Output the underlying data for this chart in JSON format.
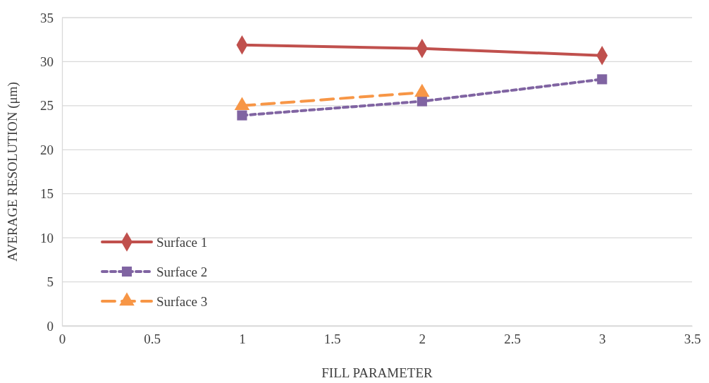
{
  "chart_data": {
    "type": "line",
    "xlabel": "FILL PARAMETER",
    "ylabel": "AVERAGE RESOLUTION (μm)",
    "xlim": [
      0,
      3.5
    ],
    "xticks": [
      0,
      0.5,
      1,
      1.5,
      2,
      2.5,
      3,
      3.5
    ],
    "ylim": [
      0,
      35
    ],
    "yticks": [
      0,
      5,
      10,
      15,
      20,
      25,
      30,
      35
    ],
    "grid": "y",
    "legend": "bottom left",
    "series": [
      {
        "name": "Surface 1",
        "color": "#c0504d",
        "x": [
          1,
          2,
          3
        ],
        "values": [
          31.9,
          31.5,
          30.7
        ],
        "marker": "diamond",
        "line_style": "solid"
      },
      {
        "name": "Surface 2",
        "color": "#8064a2",
        "x": [
          1,
          2,
          3
        ],
        "values": [
          23.9,
          25.5,
          28.0
        ],
        "marker": "square",
        "line_style": "dotted"
      },
      {
        "name": "Surface 3",
        "color": "#f79646",
        "x": [
          1,
          2
        ],
        "values": [
          25.0,
          26.5
        ],
        "marker": "triangle",
        "line_style": "dashed"
      }
    ]
  }
}
